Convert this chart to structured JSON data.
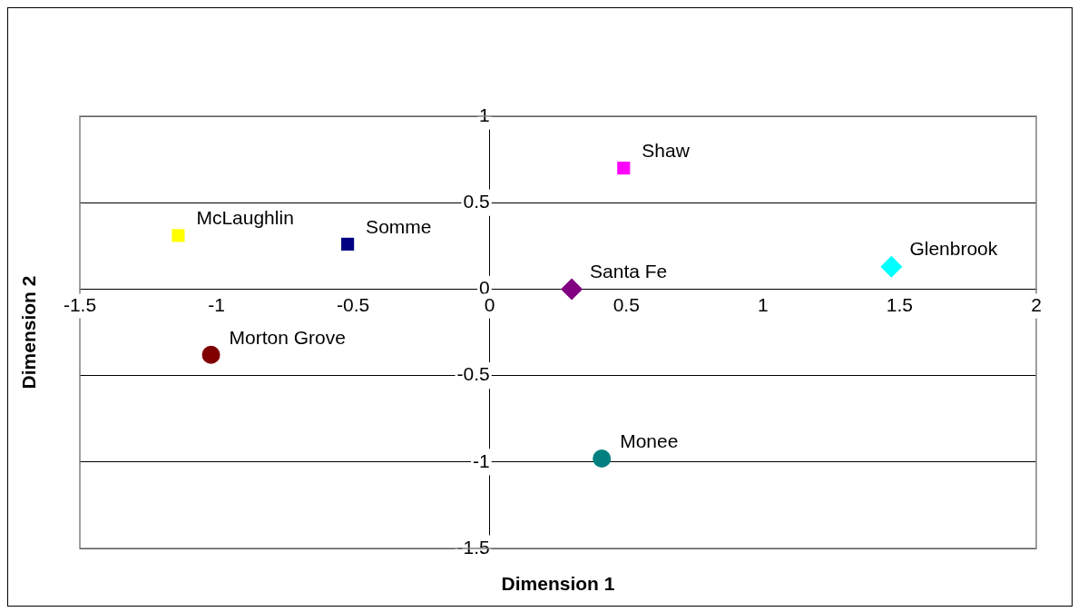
{
  "chart_data": {
    "type": "scatter",
    "xlabel": "Dimension 1",
    "ylabel": "Dimension 2",
    "xlim": [
      -1.5,
      2
    ],
    "xticks": [
      -1.5,
      -1,
      -0.5,
      0,
      0.5,
      1,
      1.5,
      2
    ],
    "ylim": [
      -1.5,
      1
    ],
    "yticks": [
      -1.5,
      -1,
      -0.5,
      0,
      0.5,
      1
    ],
    "grid": "y",
    "legend": false,
    "series": [
      {
        "name": "Shaw",
        "color": "#ff00ff",
        "marker": "square",
        "x": [
          0.49
        ],
        "values": [
          0.7
        ]
      },
      {
        "name": "McLaughlin",
        "color": "#ffff00",
        "marker": "square",
        "x": [
          -1.14
        ],
        "values": [
          0.31
        ]
      },
      {
        "name": "Somme",
        "color": "#000080",
        "marker": "square",
        "x": [
          -0.52
        ],
        "values": [
          0.26
        ]
      },
      {
        "name": "Santa Fe",
        "color": "#800080",
        "marker": "diamond",
        "x": [
          0.3
        ],
        "values": [
          0
        ]
      },
      {
        "name": "Glenbrook",
        "color": "#00ffff",
        "marker": "diamond",
        "x": [
          1.47
        ],
        "values": [
          0.13
        ]
      },
      {
        "name": "Morton Grove",
        "color": "#800000",
        "marker": "circle",
        "x": [
          -1.02
        ],
        "values": [
          -0.38
        ]
      },
      {
        "name": "Monee",
        "color": "#008080",
        "marker": "circle",
        "x": [
          0.41
        ],
        "values": [
          -0.98
        ]
      }
    ]
  }
}
